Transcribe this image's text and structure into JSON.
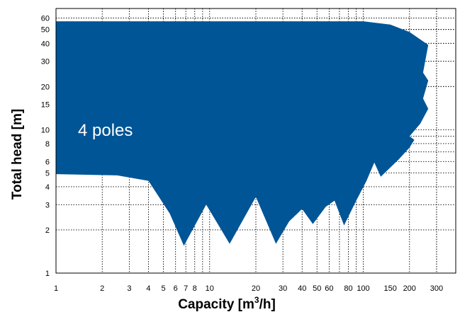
{
  "chart_data": {
    "type": "area",
    "title": "",
    "xlabel": "Capacity [m³/h]",
    "ylabel": "Total head [m]",
    "x_scale": "log",
    "y_scale": "log",
    "xlim": [
      1,
      400
    ],
    "ylim": [
      1,
      70
    ],
    "grid": true,
    "fill_color": "#005596",
    "annotation": "4 poles",
    "x_ticks": [
      "1",
      "2",
      "3",
      "4",
      "5",
      "6",
      "7",
      "8",
      "10",
      "20",
      "30",
      "40",
      "50",
      "60",
      "80",
      "100",
      "150",
      "200",
      "300"
    ],
    "y_ticks": [
      "1",
      "2",
      "3",
      "4",
      "5",
      "6",
      "8",
      "10",
      "15",
      "20",
      "30",
      "40",
      "50",
      "60"
    ],
    "upper_boundary": [
      {
        "x": 1,
        "y": 57
      },
      {
        "x": 100,
        "y": 57
      },
      {
        "x": 150,
        "y": 54
      },
      {
        "x": 200,
        "y": 48
      },
      {
        "x": 265,
        "y": 39
      },
      {
        "x": 245,
        "y": 25
      },
      {
        "x": 265,
        "y": 22
      },
      {
        "x": 245,
        "y": 16.5
      },
      {
        "x": 265,
        "y": 14
      },
      {
        "x": 235,
        "y": 11
      },
      {
        "x": 200,
        "y": 9
      },
      {
        "x": 215,
        "y": 8.5
      },
      {
        "x": 200,
        "y": 7.5
      }
    ],
    "lower_boundary": [
      {
        "x": 200,
        "y": 7.5
      },
      {
        "x": 170,
        "y": 6.2
      },
      {
        "x": 130,
        "y": 4.7
      },
      {
        "x": 118,
        "y": 5.9
      },
      {
        "x": 105,
        "y": 4.4
      },
      {
        "x": 90,
        "y": 3.2
      },
      {
        "x": 75,
        "y": 2.15
      },
      {
        "x": 65,
        "y": 3.2
      },
      {
        "x": 57,
        "y": 2.9
      },
      {
        "x": 47,
        "y": 2.2
      },
      {
        "x": 40,
        "y": 2.8
      },
      {
        "x": 33,
        "y": 2.3
      },
      {
        "x": 27,
        "y": 1.6
      },
      {
        "x": 20,
        "y": 3.4
      },
      {
        "x": 13.5,
        "y": 1.6
      },
      {
        "x": 9.5,
        "y": 3.0
      },
      {
        "x": 6.8,
        "y": 1.55
      },
      {
        "x": 5.5,
        "y": 2.6
      },
      {
        "x": 4,
        "y": 4.4
      },
      {
        "x": 2.5,
        "y": 4.8
      },
      {
        "x": 1,
        "y": 4.9
      }
    ]
  }
}
